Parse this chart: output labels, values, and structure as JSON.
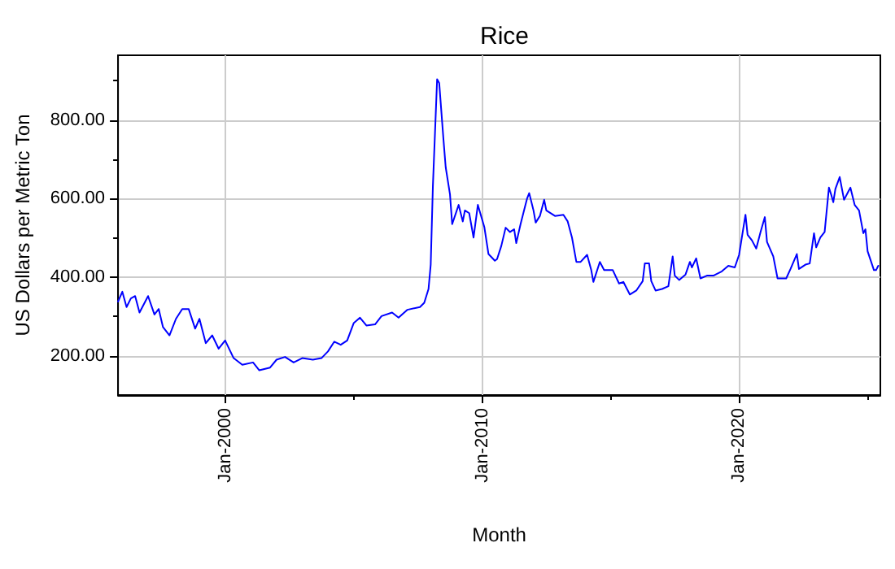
{
  "chart_data": {
    "type": "line",
    "title": "Rice",
    "xlabel": "Month",
    "ylabel": "US Dollars per Metric Ton",
    "x": [
      "1995-11",
      "1996-01",
      "1996-03",
      "1996-05",
      "1996-07",
      "1996-09",
      "1997-01",
      "1997-04",
      "1997-06",
      "1997-08",
      "1997-11",
      "1998-02",
      "1998-05",
      "1998-08",
      "1998-11",
      "1999-01",
      "1999-04",
      "1999-07",
      "1999-10",
      "2000-01",
      "2000-05",
      "2000-09",
      "2001-02",
      "2001-05",
      "2001-10",
      "2002-01",
      "2002-05",
      "2002-09",
      "2003-01",
      "2003-06",
      "2003-10",
      "2004-01",
      "2004-04",
      "2004-07",
      "2004-10",
      "2005-01",
      "2005-04",
      "2005-07",
      "2005-11",
      "2006-02",
      "2006-07",
      "2006-10",
      "2007-02",
      "2007-08",
      "2007-10",
      "2007-12",
      "2008-01",
      "2008-02",
      "2008-04",
      "2008-05",
      "2008-07",
      "2008-08",
      "2008-10",
      "2008-11",
      "2009-02",
      "2009-04",
      "2009-05",
      "2009-07",
      "2009-09",
      "2009-11",
      "2010-02",
      "2010-04",
      "2010-07",
      "2010-08",
      "2010-10",
      "2010-12",
      "2011-02",
      "2011-04",
      "2011-05",
      "2011-07",
      "2011-10",
      "2011-11",
      "2012-01",
      "2012-02",
      "2012-04",
      "2012-06",
      "2012-07",
      "2012-11",
      "2013-03",
      "2013-05",
      "2013-07",
      "2013-09",
      "2013-11",
      "2014-02",
      "2014-04",
      "2014-05",
      "2014-08",
      "2014-10",
      "2015-02",
      "2015-05",
      "2015-07",
      "2015-10",
      "2016-01",
      "2016-04",
      "2016-05",
      "2016-07",
      "2016-08",
      "2016-10",
      "2017-01",
      "2017-04",
      "2017-06",
      "2017-07",
      "2017-09",
      "2017-12",
      "2018-02",
      "2018-03",
      "2018-05",
      "2018-07",
      "2018-10",
      "2019-01",
      "2019-05",
      "2019-08",
      "2019-11",
      "2020-01",
      "2020-04",
      "2020-05",
      "2020-07",
      "2020-09",
      "2020-11",
      "2021-01",
      "2021-02",
      "2021-05",
      "2021-07",
      "2021-11",
      "2022-01",
      "2022-04",
      "2022-05",
      "2022-08",
      "2022-10",
      "2022-12",
      "2023-01",
      "2023-03",
      "2023-05",
      "2023-07",
      "2023-08",
      "2023-09",
      "2023-10",
      "2023-12",
      "2024-02",
      "2024-04",
      "2024-05",
      "2024-07",
      "2024-09",
      "2024-11",
      "2024-12",
      "2025-01",
      "2025-04",
      "2025-05",
      "2025-06"
    ],
    "series": [
      {
        "color": "#0000ff",
        "values": [
          338,
          363,
          324,
          346,
          352,
          310,
          352,
          305,
          319,
          273,
          252,
          294,
          319,
          319,
          269,
          294,
          232,
          252,
          218,
          239,
          194,
          177,
          183,
          163,
          170,
          190,
          197,
          183,
          194,
          190,
          194,
          211,
          236,
          228,
          239,
          283,
          297,
          277,
          280,
          301,
          310,
          297,
          317,
          324,
          335,
          370,
          432,
          632,
          904,
          894,
          749,
          680,
          611,
          535,
          584,
          542,
          570,
          563,
          501,
          584,
          528,
          459,
          442,
          446,
          480,
          526,
          515,
          522,
          487,
          535,
          600,
          614,
          570,
          539,
          556,
          597,
          570,
          556,
          559,
          542,
          501,
          439,
          439,
          457,
          418,
          388,
          439,
          418,
          418,
          384,
          388,
          356,
          366,
          390,
          435,
          435,
          390,
          366,
          370,
          377,
          453,
          404,
          393,
          407,
          439,
          425,
          448,
          397,
          404,
          404,
          415,
          429,
          425,
          457,
          559,
          508,
          494,
          473,
          515,
          553,
          490,
          453,
          397,
          397,
          421,
          459,
          421,
          432,
          435,
          512,
          476,
          501,
          515,
          628,
          611,
          591,
          625,
          655,
          597,
          618,
          628,
          584,
          570,
          512,
          522,
          466,
          418,
          418,
          429
        ]
      }
    ],
    "xlim": [
      "1995-11",
      "2025-07"
    ],
    "xticks": [
      {
        "value": "2000-01",
        "label": "Jan-2000"
      },
      {
        "value": "2005-01",
        "label": null
      },
      {
        "value": "2010-01",
        "label": "Jan-2010"
      },
      {
        "value": "2015-01",
        "label": null
      },
      {
        "value": "2020-01",
        "label": "Jan-2020"
      },
      {
        "value": "2025-01",
        "label": null
      }
    ],
    "ylim": [
      100,
      965
    ],
    "yticks": [
      {
        "value": 200,
        "label": "200.00"
      },
      {
        "value": 300,
        "label": null
      },
      {
        "value": 400,
        "label": "400.00"
      },
      {
        "value": 500,
        "label": null
      },
      {
        "value": 600,
        "label": "600.00"
      },
      {
        "value": 700,
        "label": null
      },
      {
        "value": 800,
        "label": "800.00"
      },
      {
        "value": 900,
        "label": null
      }
    ],
    "grid": true,
    "marker": "none",
    "line_style": "solid"
  }
}
